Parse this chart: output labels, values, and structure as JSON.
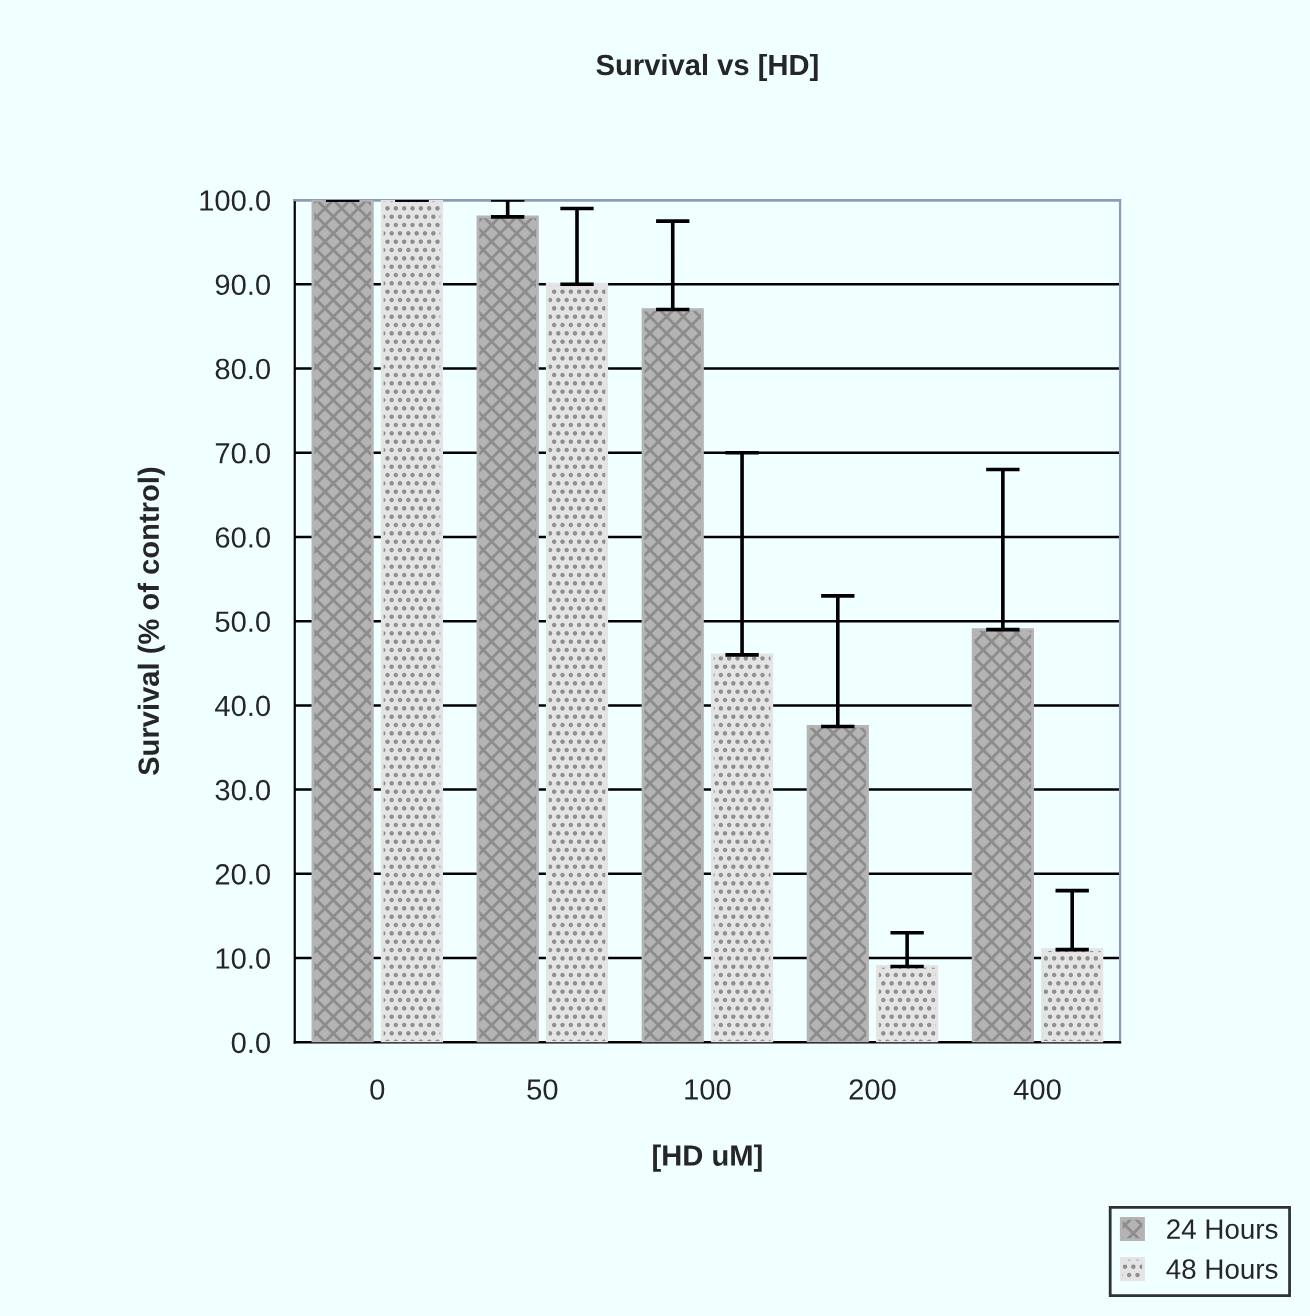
{
  "chart_data": {
    "type": "bar",
    "title": "Survival vs [HD]",
    "xlabel": "[HD uM]",
    "ylabel": "Survival (% of control)",
    "categories": [
      "0",
      "50",
      "100",
      "200",
      "400"
    ],
    "series": [
      {
        "name": "24 Hours",
        "color": "#b4b4b4",
        "values": [
          100,
          98,
          87,
          37.5,
          49
        ],
        "errors": [
          [
            100,
            100
          ],
          [
            98,
            100
          ],
          [
            87,
            97.5
          ],
          [
            37.5,
            53
          ],
          [
            49,
            68
          ]
        ]
      },
      {
        "name": "48 Hours",
        "color": "#e4e4e4",
        "values": [
          100,
          90,
          46,
          9,
          11
        ],
        "errors": [
          [
            100,
            100
          ],
          [
            90,
            99
          ],
          [
            46,
            70
          ],
          [
            9,
            13
          ],
          [
            11,
            18
          ]
        ]
      }
    ],
    "ylim": [
      0,
      100
    ],
    "yticks": [
      {
        "value": 0,
        "label": "0.0"
      },
      {
        "value": 10,
        "label": "10.0"
      },
      {
        "value": 20,
        "label": "20.0"
      },
      {
        "value": 30,
        "label": "30.0"
      },
      {
        "value": 40,
        "label": "40.0"
      },
      {
        "value": 50,
        "label": "50.0"
      },
      {
        "value": 60,
        "label": "60.0"
      },
      {
        "value": 70,
        "label": "70.0"
      },
      {
        "value": 80,
        "label": "80.0"
      },
      {
        "value": 90,
        "label": "90.0"
      },
      {
        "value": 100,
        "label": "100.0"
      }
    ],
    "grid": "y",
    "legend": "bottom right"
  }
}
